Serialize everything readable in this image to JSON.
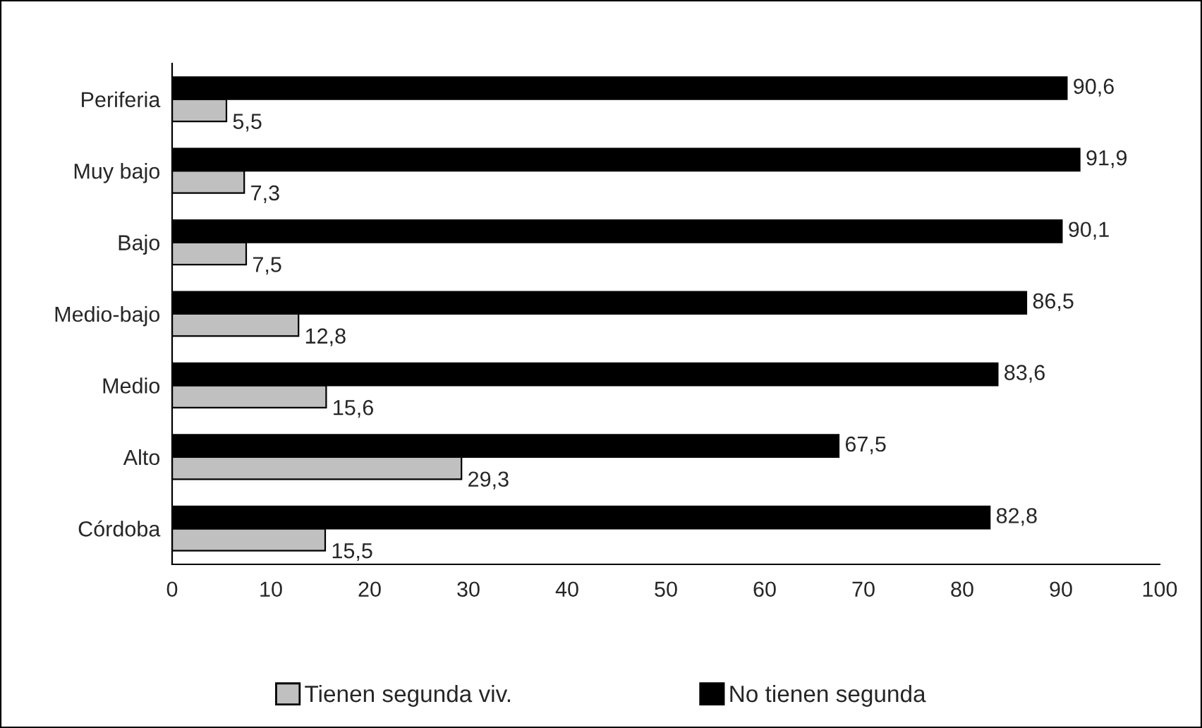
{
  "chart_data": {
    "type": "bar",
    "orientation": "horizontal",
    "categories": [
      "Periferia",
      "Muy bajo",
      "Bajo",
      "Medio-bajo",
      "Medio",
      "Alto",
      "Córdoba"
    ],
    "series": [
      {
        "name": "Tienen segunda viv.",
        "color": "#c0c0c0",
        "values": [
          5.5,
          7.3,
          7.5,
          12.8,
          15.6,
          29.3,
          15.5
        ],
        "value_labels": [
          "5,5",
          "7,3",
          "7,5",
          "12,8",
          "15,6",
          "29,3",
          "15,5"
        ]
      },
      {
        "name": "No tienen segunda",
        "color": "#000000",
        "values": [
          90.6,
          91.9,
          90.1,
          86.5,
          83.6,
          67.5,
          82.8
        ],
        "value_labels": [
          "90,6",
          "91,9",
          "90,1",
          "86,5",
          "83,6",
          "67,5",
          "82,8"
        ]
      }
    ],
    "xlim": [
      0,
      100
    ],
    "xticks": [
      0,
      10,
      20,
      30,
      40,
      50,
      60,
      70,
      80,
      90,
      100
    ],
    "grid": false,
    "legend": "bottom"
  }
}
